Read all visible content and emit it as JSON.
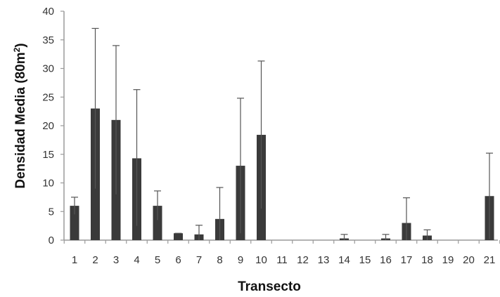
{
  "chart_data": {
    "type": "bar",
    "title": "",
    "xlabel": "Transecto",
    "ylabel_main": "Densidad Media (80m",
    "ylabel_sup": "2",
    "ylabel_close": ")",
    "ylim": [
      0,
      40
    ],
    "yticks": [
      "0",
      "5",
      "10",
      "15",
      "20",
      "25",
      "30",
      "35",
      "40"
    ],
    "ytick_values": [
      0,
      5,
      10,
      15,
      20,
      25,
      30,
      35,
      40
    ],
    "categories": [
      "1",
      "2",
      "3",
      "4",
      "5",
      "6",
      "7",
      "8",
      "9",
      "10",
      "11",
      "12",
      "13",
      "14",
      "15",
      "16",
      "17",
      "18",
      "19",
      "20",
      "21"
    ],
    "values": [
      6.0,
      23.0,
      21.0,
      14.3,
      6.0,
      1.2,
      1.0,
      3.7,
      13.0,
      18.4,
      0,
      0,
      0,
      0.3,
      0,
      0.3,
      3.0,
      0.8,
      0,
      0,
      7.7
    ],
    "error_upper": [
      7.5,
      37.0,
      34.0,
      26.3,
      8.6,
      1.2,
      2.6,
      9.2,
      24.8,
      31.3,
      0,
      0,
      0,
      1.0,
      0,
      1.0,
      7.4,
      1.8,
      0,
      0,
      15.2
    ],
    "error_lower": [
      4.5,
      9.0,
      8.0,
      2.5,
      3.5,
      1.2,
      0,
      0,
      1.2,
      5.5,
      0,
      0,
      0,
      0,
      0,
      0,
      0,
      0,
      0,
      0,
      0.2
    ],
    "bar_color": "#3a3a3a",
    "axis_color": "#9a9a9a",
    "grid": false
  }
}
